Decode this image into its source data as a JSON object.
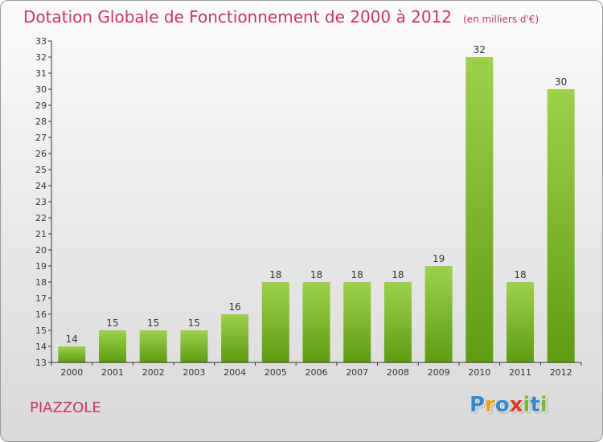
{
  "header": {
    "title": "Dotation Globale de Fonctionnement de 2000 à 2012",
    "unit": "(en milliers d'€)"
  },
  "footer": {
    "commune": "PIAZZOLE",
    "brand_letters": [
      "P",
      "r",
      "o",
      "x",
      "i",
      "t",
      "i"
    ],
    "brand_colors": [
      "#3a87c8",
      "#e8a21c",
      "#3a87c8",
      "#d83a2a",
      "#7ab82d",
      "#3a87c8",
      "#7ab82d"
    ]
  },
  "colors": {
    "title": "#cc3366",
    "bar_light": "#9ed14b",
    "bar_dark": "#5f9b15",
    "axis": "#333333"
  },
  "chart_data": {
    "type": "bar",
    "title": "Dotation Globale de Fonctionnement de 2000 à 2012",
    "subtitle": "(en milliers d'€)",
    "categories": [
      "2000",
      "2001",
      "2002",
      "2003",
      "2004",
      "2005",
      "2006",
      "2007",
      "2008",
      "2009",
      "2010",
      "2011",
      "2012"
    ],
    "values": [
      14,
      15,
      15,
      15,
      16,
      18,
      18,
      18,
      18,
      19,
      32,
      18,
      30
    ],
    "ylim": [
      13,
      33
    ],
    "yticks": [
      13,
      14,
      15,
      16,
      17,
      18,
      19,
      20,
      21,
      22,
      23,
      24,
      25,
      26,
      27,
      28,
      29,
      30,
      31,
      32,
      33
    ],
    "xlabel": "",
    "ylabel": "",
    "grid": false,
    "data_labels": true
  }
}
